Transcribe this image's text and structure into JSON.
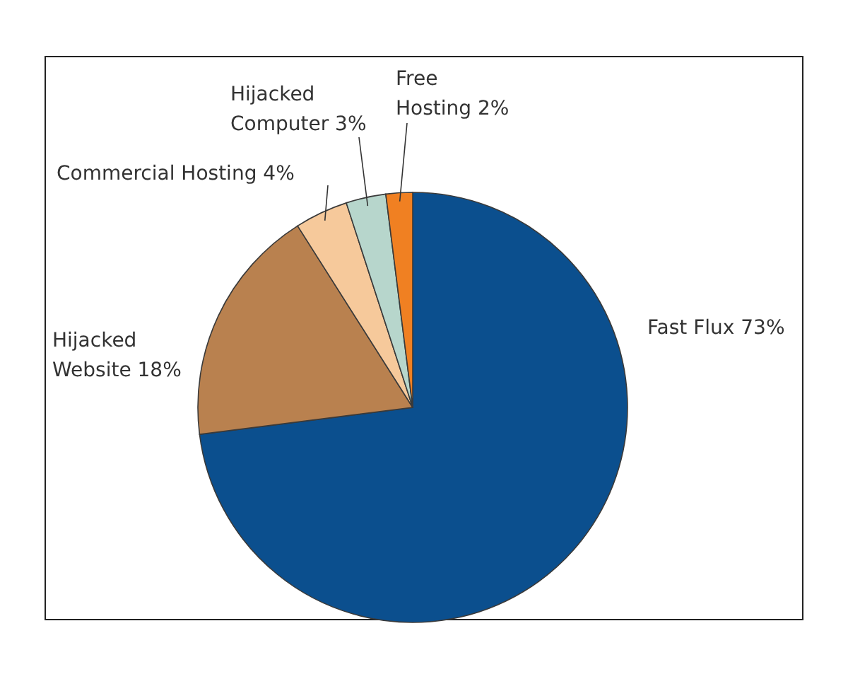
{
  "chart_data": {
    "type": "pie",
    "categories": [
      "Fast Flux",
      "Hijacked Website",
      "Commercial Hosting",
      "Hijacked Computer",
      "Free Hosting"
    ],
    "values": [
      73,
      18,
      4,
      3,
      2
    ],
    "colors": [
      "#0b4f8e",
      "#b9814f",
      "#f6c99b",
      "#b7d6cc",
      "#f08022"
    ],
    "value_labels": [
      "73%",
      "18%",
      "4%",
      "3%",
      "2%"
    ]
  }
}
